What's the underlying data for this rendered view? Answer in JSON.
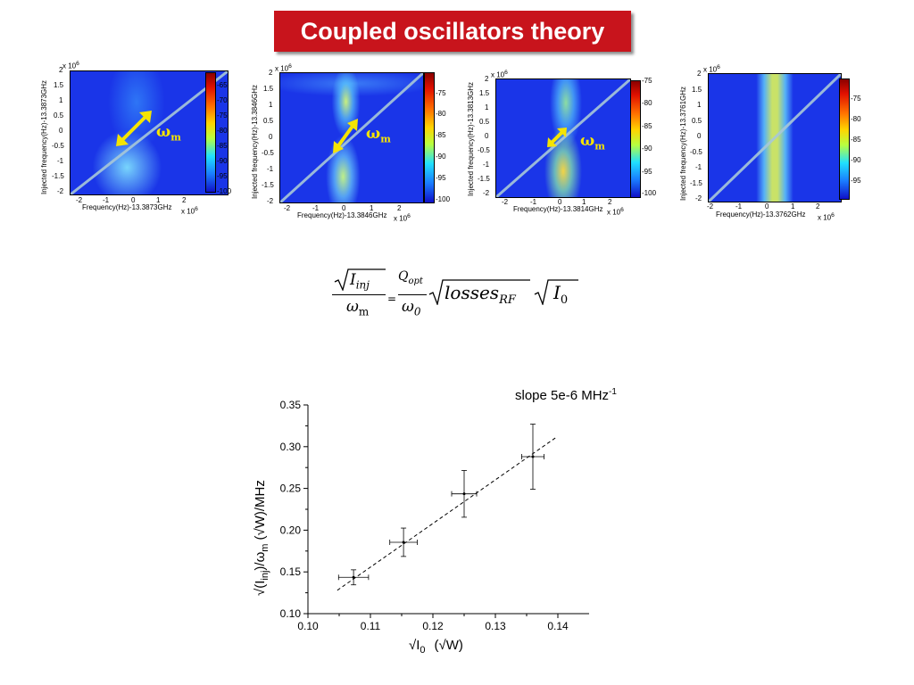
{
  "slide_title": "Coupled oscillators theory",
  "heatmaps": [
    {
      "x_multiplier": "x 10",
      "x_exp": "6",
      "y_multiplier": "x 10",
      "y_exp": "6",
      "xlabel": "Frequency(Hz)-13.3873GHz",
      "ylabel": "Injected frequency(Hz)-13.3873GHz",
      "xticks": [
        "-2",
        "-1",
        "0",
        "1",
        "2"
      ],
      "yticks": [
        "2",
        "1.5",
        "1",
        "0.5",
        "0",
        "-0.5",
        "-1",
        "-1.5",
        "-2"
      ],
      "cbar_ticks": [
        "-65",
        "-70",
        "-75",
        "-80",
        "-85",
        "-90",
        "-95",
        "-100"
      ],
      "omega_label": "ω",
      "omega_sub": "m"
    },
    {
      "x_multiplier": "x 10",
      "x_exp": "6",
      "y_multiplier": "x 10",
      "y_exp": "6",
      "xlabel": "Frequency(Hz)-13.3846GHz",
      "ylabel": "Injected frequency(Hz)-13.3846GHz",
      "xticks": [
        "-2",
        "-1",
        "0",
        "1",
        "2"
      ],
      "yticks": [
        "2",
        "1.5",
        "1",
        "0.5",
        "0",
        "-0.5",
        "-1",
        "-1.5",
        "-2"
      ],
      "cbar_ticks": [
        "-75",
        "-80",
        "-85",
        "-90",
        "-95",
        "-100"
      ],
      "omega_label": "ω",
      "omega_sub": "m"
    },
    {
      "x_multiplier": "x 10",
      "x_exp": "6",
      "y_multiplier": "x 10",
      "y_exp": "6",
      "xlabel": "Frequency(Hz)-13.3814GHz",
      "ylabel": "Injected frequency(Hz)-13.3813GHz",
      "xticks": [
        "-2",
        "-1",
        "0",
        "1",
        "2"
      ],
      "yticks": [
        "2",
        "1.5",
        "1",
        "0.5",
        "0",
        "-0.5",
        "-1",
        "-1.5",
        "-2"
      ],
      "cbar_ticks": [
        "-75",
        "-80",
        "-85",
        "-90",
        "-95",
        "-100"
      ],
      "omega_label": "ω",
      "omega_sub": "m"
    },
    {
      "x_multiplier": "x 10",
      "x_exp": "6",
      "y_multiplier": "x 10",
      "y_exp": "6",
      "xlabel": "Frequency(Hz)-13.3762GHz",
      "ylabel": "Injected frequency(Hz)-13.3761GHz",
      "xticks": [
        "-2",
        "-1",
        "0",
        "1",
        "2"
      ],
      "yticks": [
        "2",
        "1.5",
        "1",
        "0.5",
        "0",
        "-0.5",
        "-1",
        "-1.5",
        "-2"
      ],
      "cbar_ticks": [
        "-75",
        "-80",
        "-85",
        "-90",
        "-95"
      ]
    }
  ],
  "formula": {
    "lhs_num": "I",
    "lhs_num_sub": "inj",
    "lhs_den": "ω",
    "lhs_den_sub": "m",
    "equals": "=",
    "rhs_num": "Q",
    "rhs_num_sub": "opt",
    "rhs_den": "ω",
    "rhs_den_sub": "0",
    "losses": "losses",
    "losses_sub": "RF",
    "i0": "I",
    "i0_sub": "0"
  },
  "chart_data": {
    "type": "scatter",
    "title": "",
    "annotation": "slope 5e-6 MHz",
    "annotation_sup": "-1",
    "xlabel": "√I",
    "xlabel_sub": "0",
    "xlabel_unit": "(√W)",
    "ylabel_prefix": "√(I",
    "ylabel_sub1": "inj",
    "ylabel_mid": ")/ω",
    "ylabel_sub2": "m",
    "ylabel_unit": "(√W)/MHz",
    "xlim": [
      0.1,
      0.145
    ],
    "ylim": [
      0.1,
      0.35
    ],
    "xticks": [
      "0.10",
      "0.11",
      "0.12",
      "0.13",
      "0.14"
    ],
    "yticks": [
      "0.35",
      "0.30",
      "0.25",
      "0.20",
      "0.15",
      "0.10"
    ],
    "points": [
      {
        "x": 0.1073,
        "y": 0.1435,
        "xerr": 0.0024,
        "yerr": 0.009
      },
      {
        "x": 0.1153,
        "y": 0.1855,
        "xerr": 0.0022,
        "yerr": 0.017
      },
      {
        "x": 0.125,
        "y": 0.2435,
        "xerr": 0.002,
        "yerr": 0.028
      },
      {
        "x": 0.136,
        "y": 0.288,
        "xerr": 0.0018,
        "yerr": 0.039
      }
    ],
    "fit": {
      "x": [
        0.1047,
        0.1397
      ],
      "y": [
        0.128,
        0.311
      ]
    }
  }
}
